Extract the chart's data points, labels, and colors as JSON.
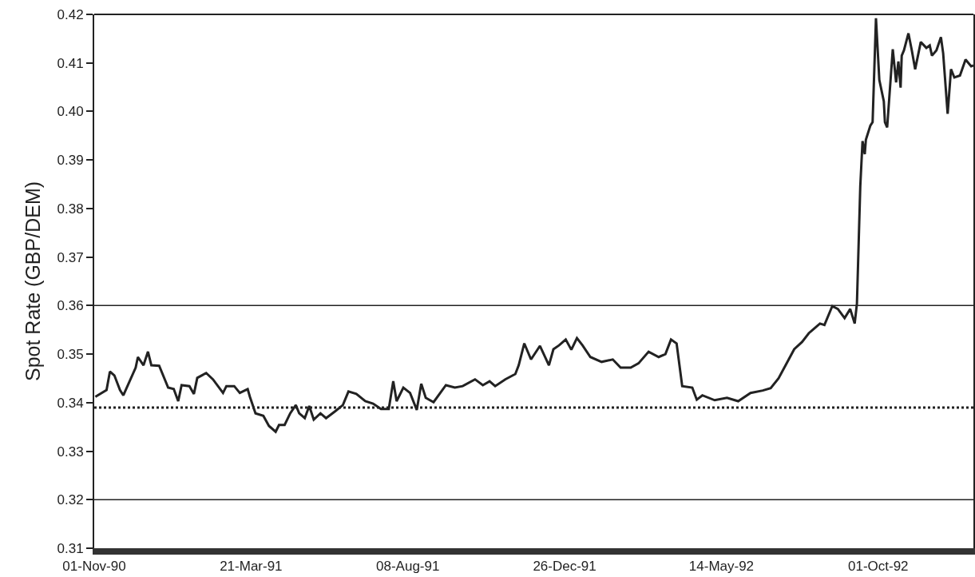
{
  "chart_data": {
    "type": "line",
    "ylabel": "Spot Rate (GBP/DEM)",
    "x": [
      "1990-11-02",
      "1990-11-12",
      "1990-11-15",
      "1990-11-19",
      "1990-11-24",
      "1990-11-27",
      "1990-12-08",
      "1990-12-10",
      "1990-12-15",
      "1990-12-19",
      "1990-12-22",
      "1990-12-29",
      "1991-01-06",
      "1991-01-11",
      "1991-01-15",
      "1991-01-18",
      "1991-01-25",
      "1991-01-29",
      "1991-02-01",
      "1991-02-09",
      "1991-02-15",
      "1991-02-24",
      "1991-02-27",
      "1991-03-06",
      "1991-03-11",
      "1991-03-18",
      "1991-03-20",
      "1991-03-25",
      "1991-04-01",
      "1991-04-06",
      "1991-04-12",
      "1991-04-15",
      "1991-04-20",
      "1991-04-25",
      "1991-04-30",
      "1991-05-03",
      "1991-05-08",
      "1991-05-12",
      "1991-05-16",
      "1991-05-22",
      "1991-05-27",
      "1991-06-04",
      "1991-06-11",
      "1991-06-16",
      "1991-06-23",
      "1991-07-01",
      "1991-07-08",
      "1991-07-15",
      "1991-07-22",
      "1991-07-26",
      "1991-07-29",
      "1991-08-04",
      "1991-08-10",
      "1991-08-16",
      "1991-08-20",
      "1991-08-24",
      "1991-08-31",
      "1991-09-11",
      "1991-09-19",
      "1991-09-26",
      "1991-10-07",
      "1991-10-14",
      "1991-10-20",
      "1991-10-25",
      "1991-11-03",
      "1991-11-12",
      "1991-11-15",
      "1991-11-20",
      "1991-11-26",
      "1991-12-04",
      "1991-12-12",
      "1991-12-16",
      "1991-12-21",
      "1991-12-27",
      "1992-01-01",
      "1992-01-06",
      "1992-01-11",
      "1992-01-18",
      "1992-01-28",
      "1992-02-07",
      "1992-02-14",
      "1992-02-23",
      "1992-03-01",
      "1992-03-10",
      "1992-03-19",
      "1992-03-25",
      "1992-03-30",
      "1992-04-04",
      "1992-04-09",
      "1992-04-18",
      "1992-04-22",
      "1992-04-27",
      "1992-05-08",
      "1992-05-19",
      "1992-05-29",
      "1992-06-09",
      "1992-06-20",
      "1992-06-27",
      "1992-07-04",
      "1992-07-11",
      "1992-07-18",
      "1992-07-25",
      "1992-07-31",
      "1992-08-10",
      "1992-08-14",
      "1992-08-21",
      "1992-08-26",
      "1992-09-01",
      "1992-09-06",
      "1992-09-10",
      "1992-09-12",
      "1992-09-15",
      "1992-09-17",
      "1992-09-19",
      "1992-09-20",
      "1992-09-24",
      "1992-09-26",
      "1992-09-29",
      "1992-10-02",
      "1992-10-06",
      "1992-10-07",
      "1992-10-09",
      "1992-10-14",
      "1992-10-17",
      "1992-10-19",
      "1992-10-21",
      "1992-10-22",
      "1992-10-24",
      "1992-10-28",
      "1992-10-31",
      "1992-11-03",
      "1992-11-08",
      "1992-11-13",
      "1992-11-16",
      "1992-11-18",
      "1992-11-22",
      "1992-11-26",
      "1992-11-28",
      "1992-12-02",
      "1992-12-05",
      "1992-12-08",
      "1992-12-13",
      "1992-12-18",
      "1992-12-23",
      "1992-12-25"
    ],
    "series": [
      {
        "color": "#222222",
        "values": [
          0.3412,
          0.3426,
          0.3464,
          0.3456,
          0.3426,
          0.3415,
          0.3472,
          0.3494,
          0.3477,
          0.3505,
          0.3477,
          0.3476,
          0.3431,
          0.3428,
          0.3403,
          0.3436,
          0.3434,
          0.3418,
          0.3451,
          0.3461,
          0.3448,
          0.342,
          0.3434,
          0.3434,
          0.342,
          0.3428,
          0.3412,
          0.3378,
          0.3373,
          0.3352,
          0.334,
          0.3354,
          0.3354,
          0.3378,
          0.3395,
          0.3378,
          0.3368,
          0.3393,
          0.3365,
          0.3378,
          0.3368,
          0.3382,
          0.3395,
          0.3423,
          0.3418,
          0.3403,
          0.3398,
          0.3387,
          0.3387,
          0.3444,
          0.3403,
          0.3431,
          0.342,
          0.3385,
          0.3439,
          0.341,
          0.3401,
          0.3436,
          0.3431,
          0.3434,
          0.3448,
          0.3436,
          0.3444,
          0.3434,
          0.3448,
          0.3459,
          0.3477,
          0.3522,
          0.3489,
          0.3517,
          0.3477,
          0.351,
          0.3518,
          0.353,
          0.3509,
          0.3533,
          0.3518,
          0.3494,
          0.3484,
          0.3489,
          0.3472,
          0.3472,
          0.3481,
          0.3505,
          0.3494,
          0.35,
          0.353,
          0.3522,
          0.3434,
          0.3431,
          0.3406,
          0.3415,
          0.3405,
          0.341,
          0.3403,
          0.342,
          0.3425,
          0.343,
          0.345,
          0.348,
          0.351,
          0.3525,
          0.3543,
          0.3563,
          0.356,
          0.3599,
          0.3593,
          0.3574,
          0.3593,
          0.3563,
          0.3604,
          0.3846,
          0.3939,
          0.3912,
          0.3942,
          0.3971,
          0.3978,
          0.4192,
          0.4065,
          0.4021,
          0.3978,
          0.3967,
          0.4128,
          0.406,
          0.4103,
          0.4049,
          0.4115,
          0.4126,
          0.4161,
          0.4126,
          0.4087,
          0.4143,
          0.4131,
          0.4136,
          0.4115,
          0.4126,
          0.4153,
          0.412,
          0.3995,
          0.4087,
          0.407,
          0.4074,
          0.4107,
          0.4093,
          0.4095
        ]
      }
    ],
    "xlim": [
      "1990-11-01",
      "1992-12-25"
    ],
    "xticks": [
      {
        "value": "1990-11-01",
        "label": "01-Nov-90"
      },
      {
        "value": "1991-03-21",
        "label": "21-Mar-91"
      },
      {
        "value": "1991-08-08",
        "label": "08-Aug-91"
      },
      {
        "value": "1991-12-26",
        "label": "26-Dec-91"
      },
      {
        "value": "1992-05-14",
        "label": "14-May-92"
      },
      {
        "value": "1992-10-01",
        "label": "01-Oct-92"
      }
    ],
    "ylim": [
      0.31,
      0.42
    ],
    "yticks": [
      0.31,
      0.32,
      0.33,
      0.34,
      0.35,
      0.36,
      0.37,
      0.38,
      0.39,
      {
        "value": 0.4,
        "label": "0.40"
      },
      0.41,
      0.42
    ],
    "ref_lines": [
      {
        "axis": "y",
        "value": 0.36,
        "color": "#222222",
        "line_style": "solid"
      },
      {
        "axis": "y",
        "value": 0.339,
        "color": "#222222",
        "line_style": "dotted"
      },
      {
        "axis": "y",
        "value": 0.32,
        "color": "#222222",
        "line_style": "solid"
      }
    ],
    "grid": false,
    "marker": "none",
    "line_style": "solid"
  }
}
